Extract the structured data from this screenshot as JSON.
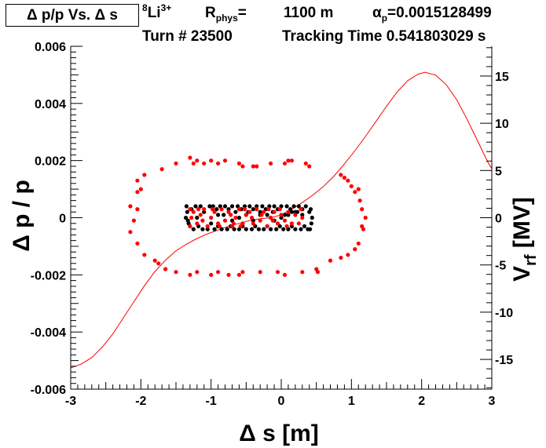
{
  "header": {
    "plot_title": "Δ p/p Vs. Δ s",
    "ion_mass": "8",
    "ion_symbol": "Li",
    "ion_charge": "3+",
    "r_label": "R",
    "r_sub": "phys",
    "r_eq": "=",
    "r_value": "1100 m",
    "alpha_symbol": "α",
    "alpha_sub": "p",
    "alpha_value": "=0.0015128499",
    "turn": "Turn # 23500",
    "tracking_time": "Tracking Time 0.541803029 s"
  },
  "chart_data": {
    "type": "scatter",
    "xlabel": "Δ s [m]",
    "ylabel": "Δ p / p",
    "y2label_main": "V",
    "y2label_sub": "rf",
    "y2label_unit": " [MV]",
    "xlim": [
      -3,
      3
    ],
    "ylim": [
      -0.006,
      0.006
    ],
    "y2lim": [
      -18.15,
      18.15
    ],
    "x_ticks": [
      -3,
      -2,
      -1,
      0,
      1,
      2,
      3
    ],
    "x_tick_labels": [
      "-3",
      "-2",
      "-1",
      "0",
      "1",
      "2",
      "3"
    ],
    "y_ticks": [
      -0.006,
      -0.004,
      -0.002,
      0,
      0.002,
      0.004,
      0.006
    ],
    "y_tick_labels": [
      "-0.006",
      "-0.004",
      "-0.002",
      "0",
      "0.002",
      "0.004",
      "0.006"
    ],
    "y2_ticks": [
      -15,
      -10,
      -5,
      0,
      5,
      10,
      15
    ],
    "y2_tick_labels": [
      "-15",
      "-10",
      "-5",
      "0",
      "5",
      "10",
      "15"
    ],
    "colors": {
      "black_series": "#000000",
      "red_series": "#ff0000",
      "rf_curve": "#ff0000",
      "axes": "#000000"
    },
    "series": [
      {
        "name": "core-black",
        "color": "#000000",
        "points": [
          [
            -1.35,
            0.0004
          ],
          [
            -1.33,
            -0.0001
          ],
          [
            -1.3,
            -0.0003
          ],
          [
            -1.28,
            0.0003
          ],
          [
            -1.25,
            -0.0004
          ],
          [
            -1.22,
            0.0004
          ],
          [
            -1.2,
            0.0
          ],
          [
            -1.18,
            -0.0003
          ],
          [
            -1.15,
            0.0004
          ],
          [
            -1.12,
            -0.0004
          ],
          [
            -1.1,
            0.0002
          ],
          [
            -1.05,
            -0.0004
          ],
          [
            -1.02,
            0.0004
          ],
          [
            -1.0,
            -0.0002
          ],
          [
            -0.97,
            0.0004
          ],
          [
            -0.95,
            -0.0004
          ],
          [
            -0.92,
            0.0003
          ],
          [
            -0.9,
            -0.0003
          ],
          [
            -0.87,
            0.0004
          ],
          [
            -0.85,
            -0.0004
          ],
          [
            -0.82,
            0.0001
          ],
          [
            -0.8,
            0.0004
          ],
          [
            -0.77,
            -0.0004
          ],
          [
            -0.75,
            0.0003
          ],
          [
            -0.72,
            -0.0003
          ],
          [
            -0.7,
            0.0004
          ],
          [
            -0.67,
            -0.0004
          ],
          [
            -0.65,
            0.0002
          ],
          [
            -0.62,
            0.0004
          ],
          [
            -0.6,
            -0.0004
          ],
          [
            -0.57,
            0.0003
          ],
          [
            -0.55,
            -0.0003
          ],
          [
            -0.52,
            0.0004
          ],
          [
            -0.5,
            -0.0004
          ],
          [
            -0.47,
            0.0002
          ],
          [
            -0.45,
            0.0004
          ],
          [
            -0.42,
            -0.0004
          ],
          [
            -0.4,
            0.0003
          ],
          [
            -0.37,
            -0.0003
          ],
          [
            -0.35,
            0.0004
          ],
          [
            -0.32,
            -0.0004
          ],
          [
            -0.3,
            0.0001
          ],
          [
            -0.27,
            0.0004
          ],
          [
            -0.25,
            -0.0004
          ],
          [
            -0.22,
            0.0003
          ],
          [
            -0.2,
            -0.0003
          ],
          [
            -0.17,
            0.0004
          ],
          [
            -0.15,
            -0.0004
          ],
          [
            -0.12,
            0.0002
          ],
          [
            -0.1,
            0.0004
          ],
          [
            -0.07,
            -0.0004
          ],
          [
            -0.05,
            0.0003
          ],
          [
            -0.02,
            -0.0003
          ],
          [
            0.0,
            0.0004
          ],
          [
            0.03,
            -0.0004
          ],
          [
            0.05,
            0.0001
          ],
          [
            0.08,
            0.0004
          ],
          [
            0.1,
            -0.0004
          ],
          [
            0.13,
            0.0003
          ],
          [
            0.15,
            -0.0003
          ],
          [
            0.18,
            0.0004
          ],
          [
            0.2,
            -0.0004
          ],
          [
            0.23,
            0.0002
          ],
          [
            0.25,
            0.0004
          ],
          [
            0.28,
            -0.0004
          ],
          [
            0.3,
            0.0003
          ],
          [
            0.33,
            -0.0003
          ],
          [
            0.35,
            0.0004
          ],
          [
            0.38,
            -0.0004
          ],
          [
            0.4,
            0.0002
          ],
          [
            0.42,
            0.0003
          ],
          [
            0.43,
            -0.0002
          ],
          [
            0.44,
            0.0
          ],
          [
            0.41,
            -0.0004
          ],
          [
            -1.34,
            0.0002
          ],
          [
            -1.32,
            -0.0002
          ],
          [
            -1.36,
            0.0
          ],
          [
            -0.6,
            0.0
          ],
          [
            -0.4,
            -0.0001
          ],
          [
            -0.2,
            0.0001
          ],
          [
            0.1,
            0.0001
          ],
          [
            0.2,
            0.0002
          ],
          [
            -0.1,
            -0.0001
          ],
          [
            0.3,
            0.0001
          ],
          [
            -0.3,
            0.0002
          ],
          [
            -0.5,
            0.0001
          ],
          [
            -0.7,
            -0.0001
          ],
          [
            -0.9,
            0.0001
          ],
          [
            0.0,
            0.0
          ],
          [
            0.15,
            0.0002
          ]
        ]
      },
      {
        "name": "core-red",
        "color": "#ff0000",
        "points": [
          [
            -1.25,
            0.0002
          ],
          [
            -1.2,
            -0.0002
          ],
          [
            -1.15,
            0.0001
          ],
          [
            -1.1,
            0.0003
          ],
          [
            -1.05,
            -0.0003
          ],
          [
            -1.0,
            0.0
          ],
          [
            -0.95,
            0.0002
          ],
          [
            -0.9,
            -0.0002
          ],
          [
            -0.85,
            0.0003
          ],
          [
            -0.8,
            -0.0001
          ],
          [
            -0.75,
            0.0002
          ],
          [
            -0.7,
            -0.0003
          ],
          [
            -0.65,
            0.0
          ],
          [
            -0.6,
            0.0003
          ],
          [
            -0.55,
            -0.0002
          ],
          [
            -0.5,
            0.0001
          ],
          [
            -0.45,
            0.0002
          ],
          [
            -0.4,
            -0.0002
          ],
          [
            -0.35,
            0.0003
          ],
          [
            -0.3,
            -0.0001
          ],
          [
            -0.25,
            0.0002
          ],
          [
            -0.2,
            -0.0003
          ],
          [
            -0.15,
            0.0
          ],
          [
            -0.1,
            0.0002
          ],
          [
            -0.05,
            -0.0002
          ],
          [
            0.0,
            0.0001
          ],
          [
            0.05,
            -0.0001
          ],
          [
            0.1,
            0.0002
          ],
          [
            0.15,
            -0.0002
          ],
          [
            0.2,
            0.0001
          ],
          [
            0.25,
            -0.0002
          ],
          [
            0.3,
            0.0
          ],
          [
            -1.28,
            0.0
          ],
          [
            -1.12,
            -0.0001
          ],
          [
            -0.98,
            0.0003
          ],
          [
            -0.72,
            0.0001
          ],
          [
            -0.58,
            -0.0003
          ],
          [
            -0.42,
            0.0
          ],
          [
            -0.28,
            0.0001
          ],
          [
            -0.12,
            -0.0001
          ],
          [
            -1.3,
            0.0003
          ],
          [
            -1.3,
            -0.0003
          ],
          [
            -1.18,
            0.0003
          ],
          [
            -0.88,
            -0.0003
          ],
          [
            -0.52,
            0.0003
          ],
          [
            -0.18,
            0.0003
          ],
          [
            0.08,
            -0.0003
          ],
          [
            0.28,
            0.0003
          ],
          [
            -0.02,
            0.0003
          ],
          [
            -0.68,
            -0.0002
          ]
        ]
      },
      {
        "name": "halo-red",
        "color": "#ff0000",
        "points": [
          [
            -1.3,
            0.0021
          ],
          [
            -1.25,
            0.0019
          ],
          [
            -1.2,
            0.002
          ],
          [
            -1.1,
            0.0019
          ],
          [
            -1.0,
            0.002
          ],
          [
            -0.9,
            0.0019
          ],
          [
            -0.8,
            0.002
          ],
          [
            -0.6,
            0.0019
          ],
          [
            -0.55,
            0.0018
          ],
          [
            -0.4,
            0.0018
          ],
          [
            -0.35,
            0.0018
          ],
          [
            -0.15,
            0.0019
          ],
          [
            0.05,
            0.0019
          ],
          [
            0.1,
            0.002
          ],
          [
            0.15,
            0.002
          ],
          [
            0.35,
            0.0019
          ],
          [
            0.4,
            0.0018
          ],
          [
            -1.5,
            0.0019
          ],
          [
            -1.7,
            0.0017
          ],
          [
            -1.95,
            0.0015
          ],
          [
            -2.05,
            0.0013
          ],
          [
            -2.0,
            0.001
          ],
          [
            -2.05,
            0.0009
          ],
          [
            -2.15,
            0.0004
          ],
          [
            -2.05,
            0.0003
          ],
          [
            -2.1,
            -0.0001
          ],
          [
            -2.15,
            -0.0005
          ],
          [
            -2.05,
            -0.0009
          ],
          [
            -1.95,
            -0.0013
          ],
          [
            -1.8,
            -0.0015
          ],
          [
            -1.75,
            -0.0016
          ],
          [
            -1.65,
            -0.0018
          ],
          [
            -1.5,
            -0.0019
          ],
          [
            -1.3,
            -0.002
          ],
          [
            -1.2,
            -0.0019
          ],
          [
            -1.0,
            -0.002
          ],
          [
            -0.9,
            -0.0019
          ],
          [
            -0.75,
            -0.002
          ],
          [
            -0.6,
            -0.002
          ],
          [
            -0.55,
            -0.0019
          ],
          [
            -0.3,
            -0.0019
          ],
          [
            -0.05,
            -0.0019
          ],
          [
            0.05,
            -0.002
          ],
          [
            0.3,
            -0.0019
          ],
          [
            0.5,
            -0.0018
          ],
          [
            0.52,
            -0.0019
          ],
          [
            0.7,
            -0.0015
          ],
          [
            0.85,
            -0.0014
          ],
          [
            0.95,
            -0.0013
          ],
          [
            1.05,
            -0.0011
          ],
          [
            1.1,
            -0.0009
          ],
          [
            1.15,
            -0.0003
          ],
          [
            1.17,
            -0.0004
          ],
          [
            1.2,
            0.0
          ],
          [
            1.15,
            0.0003
          ],
          [
            1.12,
            0.0006
          ],
          [
            1.05,
            0.0009
          ],
          [
            1.1,
            0.001
          ],
          [
            1.0,
            0.0011
          ],
          [
            0.95,
            0.0013
          ],
          [
            0.85,
            0.0015
          ],
          [
            0.9,
            0.0014
          ]
        ]
      }
    ],
    "rf_curve": {
      "name": "rf-voltage",
      "color": "#ff0000",
      "samples": [
        [
          -3.0,
          -15.9
        ],
        [
          -2.85,
          -15.5
        ],
        [
          -2.7,
          -14.8
        ],
        [
          -2.55,
          -13.7
        ],
        [
          -2.4,
          -12.3
        ],
        [
          -2.25,
          -10.6
        ],
        [
          -2.1,
          -8.9
        ],
        [
          -1.95,
          -7.2
        ],
        [
          -1.8,
          -5.7
        ],
        [
          -1.65,
          -4.5
        ],
        [
          -1.5,
          -3.5
        ],
        [
          -1.35,
          -2.8
        ],
        [
          -1.2,
          -2.2
        ],
        [
          -1.05,
          -1.7
        ],
        [
          -0.9,
          -1.3
        ],
        [
          -0.75,
          -0.9
        ],
        [
          -0.6,
          -0.6
        ],
        [
          -0.45,
          -0.3
        ],
        [
          -0.3,
          -0.1
        ],
        [
          -0.15,
          0.0
        ],
        [
          0.0,
          0.3
        ],
        [
          0.15,
          0.9
        ],
        [
          0.3,
          1.6
        ],
        [
          0.45,
          2.4
        ],
        [
          0.6,
          3.3
        ],
        [
          0.75,
          4.4
        ],
        [
          0.9,
          5.7
        ],
        [
          1.05,
          7.1
        ],
        [
          1.2,
          8.6
        ],
        [
          1.35,
          10.2
        ],
        [
          1.5,
          11.8
        ],
        [
          1.65,
          13.3
        ],
        [
          1.8,
          14.5
        ],
        [
          1.95,
          15.2
        ],
        [
          2.05,
          15.4
        ],
        [
          2.2,
          15.1
        ],
        [
          2.35,
          14.1
        ],
        [
          2.5,
          12.5
        ],
        [
          2.65,
          10.4
        ],
        [
          2.8,
          8.1
        ],
        [
          2.95,
          5.8
        ],
        [
          3.0,
          5.2
        ]
      ]
    }
  }
}
